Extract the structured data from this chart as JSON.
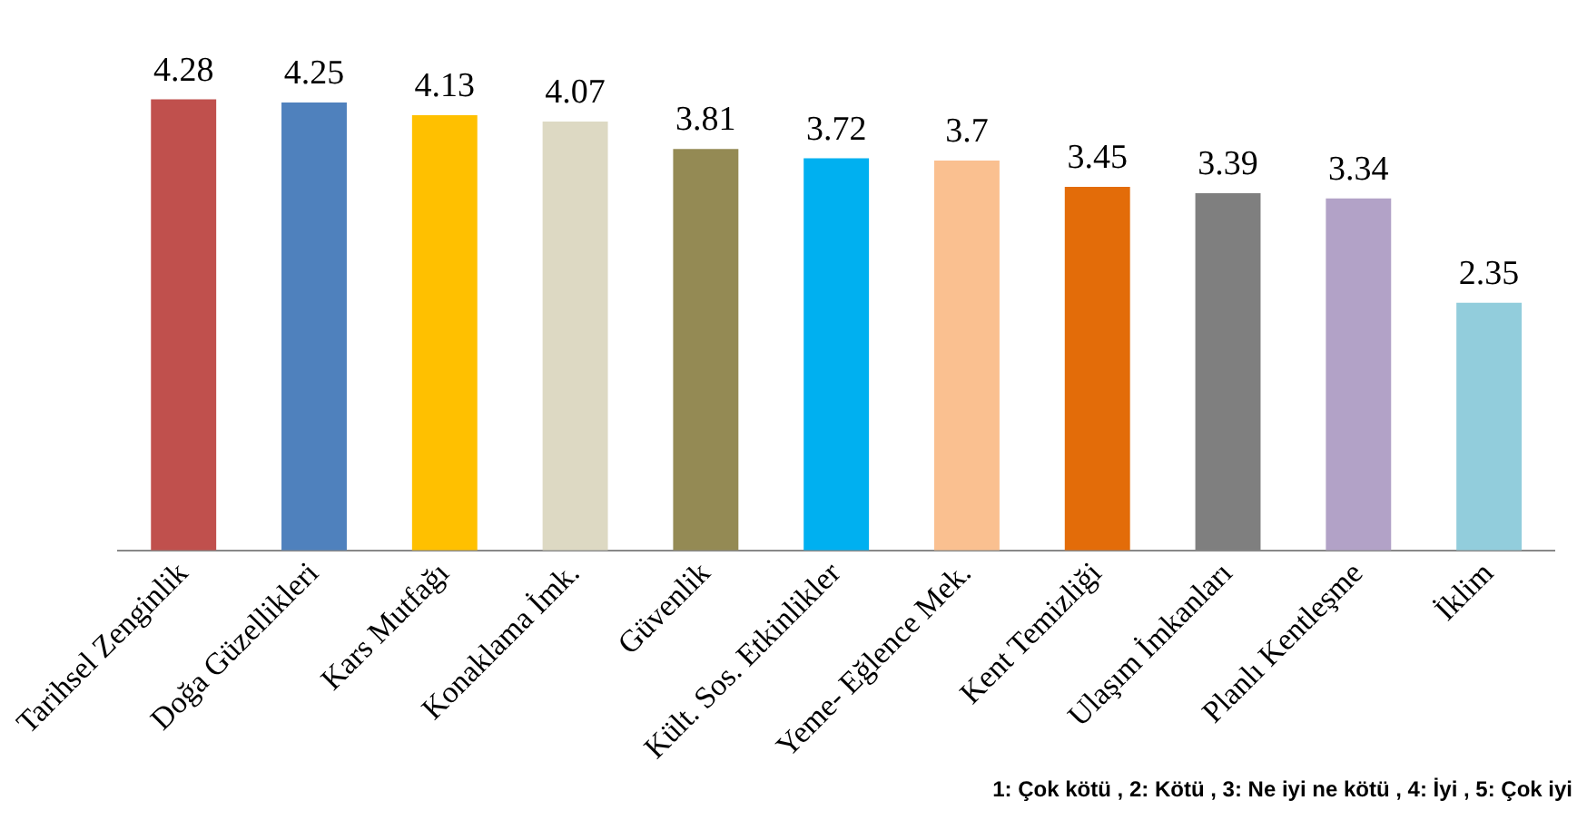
{
  "chart_data": {
    "type": "bar",
    "categories": [
      "Tarihsel Zenginlik",
      "Doğa Güzellikleri",
      "Kars Mutfağı",
      "Konaklama İmk.",
      "Güvenlik",
      "Kült. Sos. Etkinlikler",
      "Yeme- Eğlence Mek.",
      "Kent Temizliği",
      "Ulaşım İmkanları",
      "Planlı Kentleşme",
      "İklim"
    ],
    "values": [
      4.28,
      4.25,
      4.13,
      4.07,
      3.81,
      3.72,
      3.7,
      3.45,
      3.39,
      3.34,
      2.35
    ],
    "colors": [
      "#c0504d",
      "#4f81bd",
      "#ffc000",
      "#ddd9c3",
      "#948a54",
      "#00b0f0",
      "#fac090",
      "#e36c09",
      "#7f7f7f",
      "#b2a2c7",
      "#92cddc"
    ],
    "tick_labels": "x",
    "grid": false,
    "legend": false,
    "data_labels": true,
    "annotations": [
      "1: Çok kötü , 2: Kötü , 3: Ne iyi ne kötü , 4: İyi , 5: Çok iyi"
    ]
  }
}
